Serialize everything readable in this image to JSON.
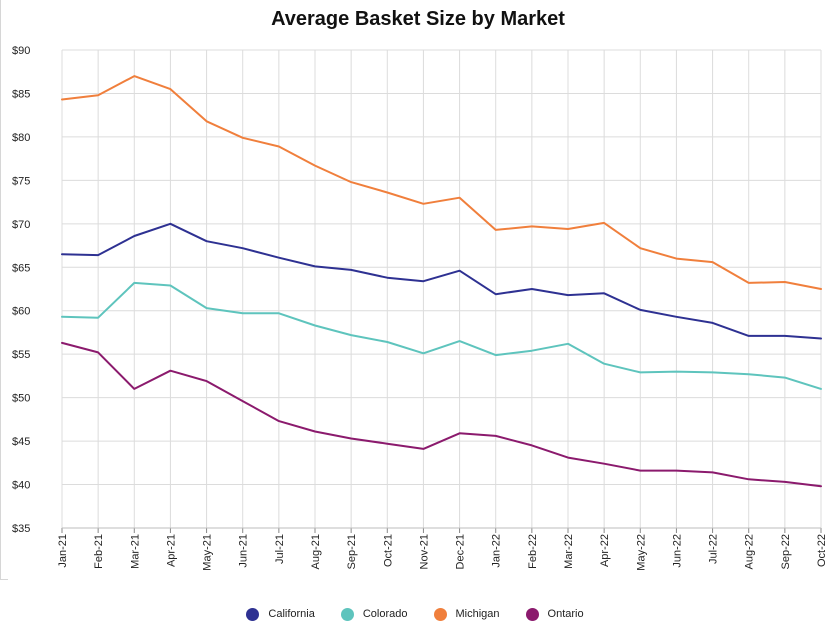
{
  "chart_data": {
    "type": "line",
    "title": "Average Basket Size by Market",
    "xlabel": "",
    "ylabel": "",
    "categories": [
      "Jan-21",
      "Feb-21",
      "Mar-21",
      "Apr-21",
      "May-21",
      "Jun-21",
      "Jul-21",
      "Aug-21",
      "Sep-21",
      "Oct-21",
      "Nov-21",
      "Dec-21",
      "Jan-22",
      "Feb-22",
      "Mar-22",
      "Apr-22",
      "May-22",
      "Jun-22",
      "Jul-22",
      "Aug-22",
      "Sep-22",
      "Oct-22"
    ],
    "ylim": [
      35,
      90
    ],
    "yticks": [
      35,
      40,
      45,
      50,
      55,
      60,
      65,
      70,
      75,
      80,
      85,
      90
    ],
    "ytick_labels": [
      "$35",
      "$40",
      "$45",
      "$50",
      "$55",
      "$60",
      "$65",
      "$70",
      "$75",
      "$80",
      "$85",
      "$90"
    ],
    "grid": true,
    "legend_position": "bottom",
    "series": [
      {
        "name": "California",
        "color": "#2e3192",
        "values": [
          66.5,
          66.4,
          68.6,
          70.0,
          68.0,
          67.2,
          66.1,
          65.1,
          64.7,
          63.8,
          63.4,
          64.6,
          61.9,
          62.5,
          61.8,
          62.0,
          60.1,
          59.3,
          58.6,
          57.1,
          57.1,
          56.8
        ]
      },
      {
        "name": "Colorado",
        "color": "#5ec4bd",
        "values": [
          59.3,
          59.2,
          63.2,
          62.9,
          60.3,
          59.7,
          59.7,
          58.3,
          57.2,
          56.4,
          55.1,
          56.5,
          54.9,
          55.4,
          56.2,
          53.9,
          52.9,
          53.0,
          52.9,
          52.7,
          52.3,
          51.0
        ]
      },
      {
        "name": "Michigan",
        "color": "#f07f3c",
        "values": [
          84.3,
          84.8,
          87.0,
          85.5,
          81.8,
          79.9,
          78.9,
          76.7,
          74.8,
          73.6,
          72.3,
          73.0,
          69.3,
          69.7,
          69.4,
          70.1,
          67.2,
          66.0,
          65.6,
          63.2,
          63.3,
          62.5
        ]
      },
      {
        "name": "Ontario",
        "color": "#8b1a6d",
        "values": [
          56.3,
          55.2,
          51.0,
          53.1,
          51.9,
          49.6,
          47.3,
          46.1,
          45.3,
          44.7,
          44.1,
          45.9,
          45.6,
          44.5,
          43.1,
          42.4,
          41.6,
          41.6,
          41.4,
          40.6,
          40.3,
          39.8
        ]
      }
    ]
  }
}
